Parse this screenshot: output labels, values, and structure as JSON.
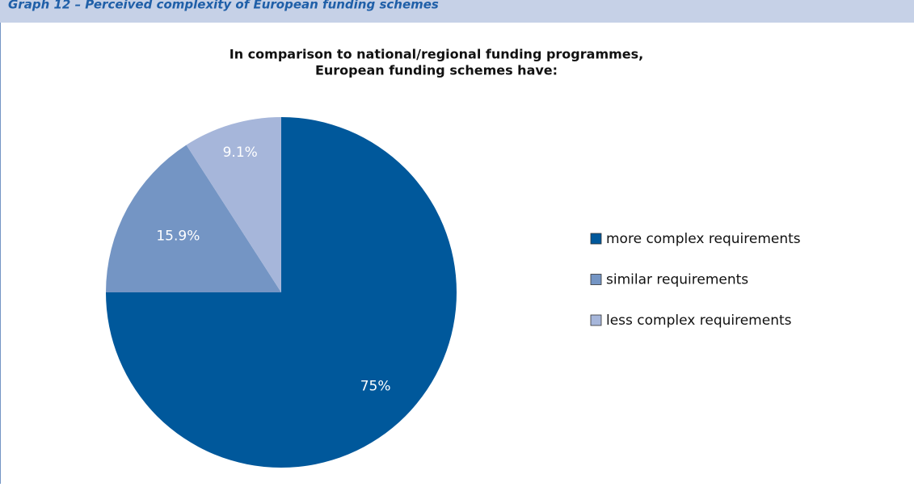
{
  "header": {
    "title": "Graph 12 – Perceived complexity of European funding schemes"
  },
  "chart_data": {
    "type": "pie",
    "title": [
      "In comparison to national/regional funding programmes,",
      "European funding schemes have:"
    ],
    "categories": [
      "more complex requirements",
      "similar requirements",
      "less complex requirements"
    ],
    "values": [
      75,
      15.9,
      9.1
    ],
    "value_labels": [
      "75%",
      "15.9%",
      "9.1%"
    ],
    "colors": [
      "#00589b",
      "#7495c4",
      "#a6b6da"
    ],
    "legend": "right"
  }
}
